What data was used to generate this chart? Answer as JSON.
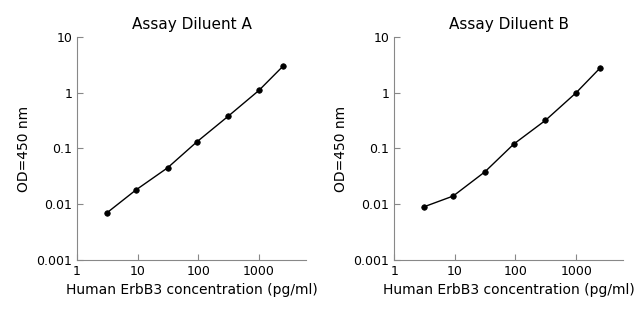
{
  "title_A": "Assay Diluent A",
  "title_B": "Assay Diluent B",
  "xlabel": "Human ErbB3 concentration (pg/ml)",
  "ylabel": "OD=450 nm",
  "xlim": [
    1,
    6000
  ],
  "ylim": [
    0.001,
    10
  ],
  "x_A": [
    3.12,
    9.38,
    31.25,
    93.75,
    312.5,
    1000,
    2500
  ],
  "y_A": [
    0.007,
    0.018,
    0.045,
    0.13,
    0.38,
    1.1,
    3.0
  ],
  "x_B": [
    3.12,
    9.38,
    31.25,
    93.75,
    312.5,
    1000,
    2500
  ],
  "y_B": [
    0.009,
    0.014,
    0.038,
    0.12,
    0.32,
    1.0,
    2.8
  ],
  "line_color": "#000000",
  "marker_color": "#000000",
  "bg_color": "#ffffff",
  "title_fontsize": 11,
  "label_fontsize": 10,
  "tick_fontsize": 9
}
